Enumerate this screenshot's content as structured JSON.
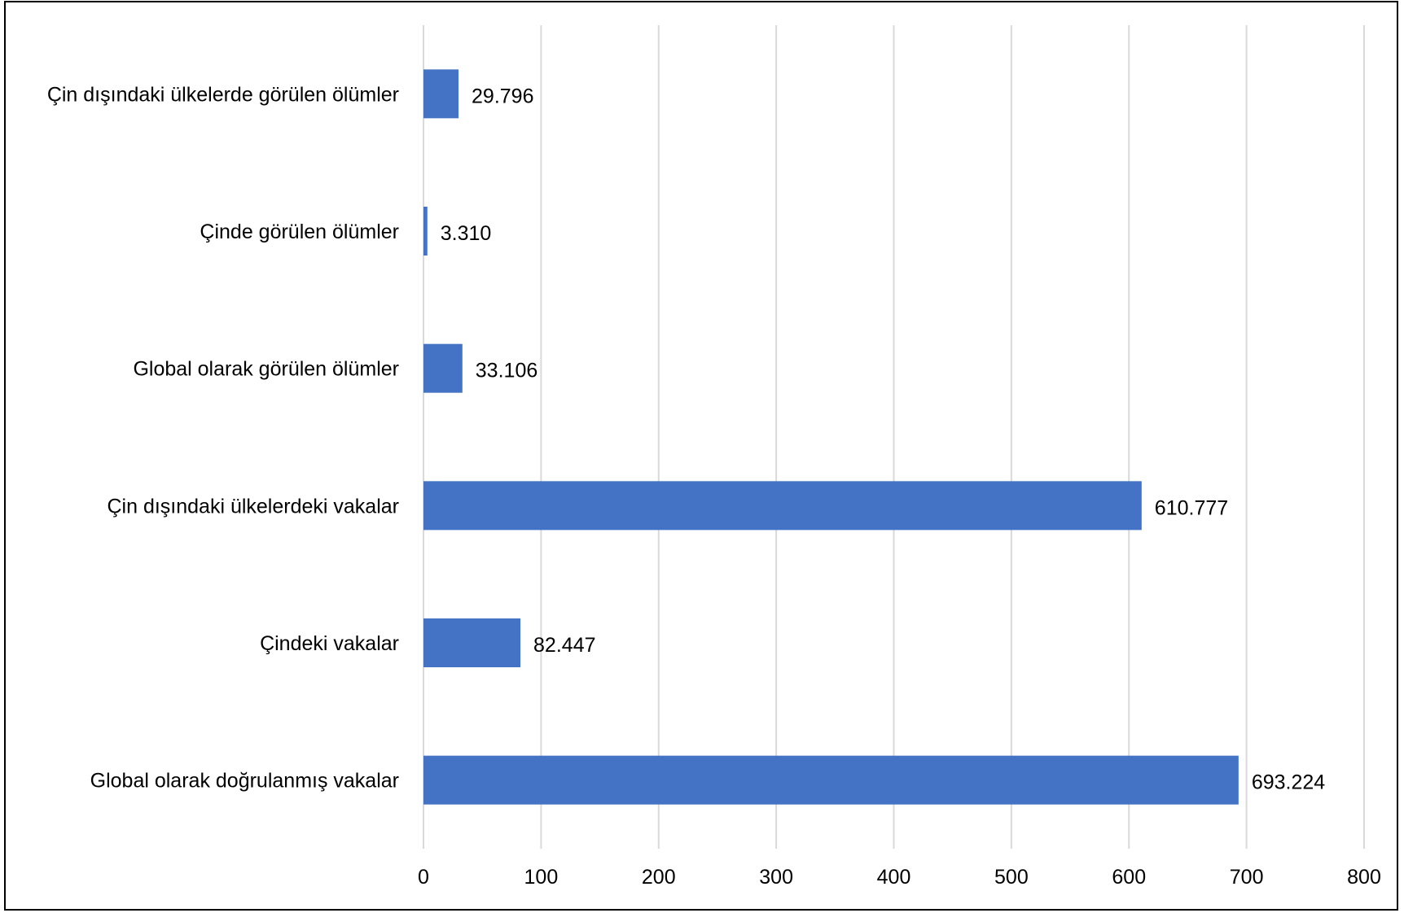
{
  "chart_data": {
    "type": "bar",
    "orientation": "horizontal",
    "title": "",
    "xlabel": "",
    "ylabel": "",
    "xlim": [
      0,
      800
    ],
    "x_ticks": [
      "0",
      "100",
      "200",
      "300",
      "400",
      "500",
      "600",
      "700",
      "800"
    ],
    "grid": true,
    "legend": "none",
    "bar_color": "#4472c4",
    "categories": [
      "Çin dışındaki ülkelerde görülen ölümler",
      "Çinde görülen ölümler",
      "Global olarak görülen ölümler",
      "Çin dışındaki ülkelerdeki vakalar",
      "Çindeki vakalar",
      "Global olarak doğrulanmış vakalar"
    ],
    "values": [
      29.796,
      3.31,
      33.106,
      610.777,
      82.447,
      693.224
    ],
    "data_labels": [
      "29.796",
      "3.310",
      "33.106",
      "610.777",
      "82.447",
      "693.224"
    ]
  }
}
